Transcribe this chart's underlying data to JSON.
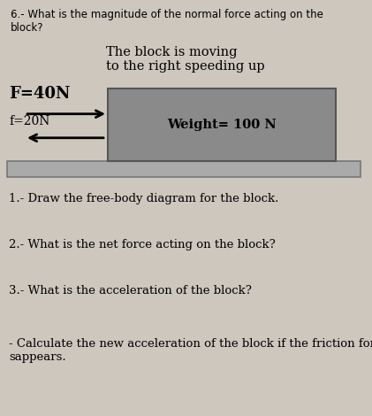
{
  "background_color": "#cdc7be",
  "title_text": "6.- What is the magnitude of the normal force acting on the\nblock?",
  "subtitle_text": "The block is moving\nto the right speeding up",
  "block_color": "#8a8a8a",
  "block_edge_color": "#555555",
  "floor_color": "#aaaaaa",
  "floor_edge_color": "#777777",
  "weight_label": "Weight= 100 N",
  "F_label": "F=40N",
  "f_label": "f=20N",
  "q1_text": "1.- Draw the free-body diagram for the block.",
  "q2_text": "2.- What is the net force acting on the block?",
  "q3_text": "3.- What is the acceleration of the block?",
  "q4_text": "- Calculate the new acceleration of the block if the friction force\nsappears.",
  "title_fontsize": 8.5,
  "subtitle_fontsize": 10.5,
  "F_label_fontsize": 13,
  "f_label_fontsize": 10,
  "weight_fontsize": 10.5,
  "question_fontsize": 9.5
}
